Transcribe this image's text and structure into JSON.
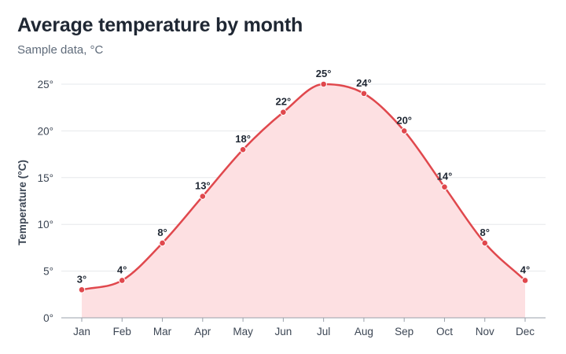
{
  "chart_data": {
    "type": "area",
    "title": "Average temperature by month",
    "subtitle": "Sample data, °C",
    "xlabel": "",
    "ylabel": "Temperature (°C)",
    "categories": [
      "Jan",
      "Feb",
      "Mar",
      "Apr",
      "May",
      "Jun",
      "Jul",
      "Aug",
      "Sep",
      "Oct",
      "Nov",
      "Dec"
    ],
    "values": [
      3,
      4,
      8,
      13,
      18,
      22,
      25,
      24,
      20,
      14,
      8,
      4
    ],
    "data_labels": [
      "3°",
      "4°",
      "8°",
      "13°",
      "18°",
      "22°",
      "25°",
      "24°",
      "20°",
      "14°",
      "8°",
      "4°"
    ],
    "ylim": [
      0,
      25
    ],
    "yticks": [
      0,
      5,
      10,
      15,
      20,
      25
    ],
    "ytick_labels": [
      "0°",
      "5°",
      "10°",
      "15°",
      "20°",
      "25°"
    ],
    "grid": true,
    "line_color": "#e0484d",
    "fill_color": "#fde0e2",
    "grid_color": "#e6e8ec",
    "axis_color": "#9aa1ab"
  }
}
